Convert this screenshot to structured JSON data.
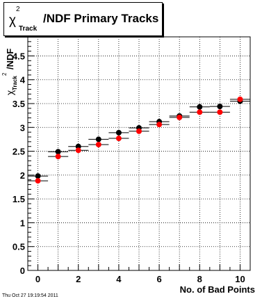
{
  "chart_data": {
    "type": "scatter",
    "title": {
      "chi": "χ",
      "sup": "2",
      "sub": "Track",
      "rest": "/NDF Primary Tracks"
    },
    "ylabel": {
      "chi": "χ",
      "sup": "2",
      "sub": "Track",
      "rest": "/NDF"
    },
    "xlabel": "No. of Bad Points",
    "xlim": [
      -0.5,
      10.5
    ],
    "ylim": [
      0,
      4.9
    ],
    "x_ticks": [
      {
        "value": 0,
        "label": "0"
      },
      {
        "value": 2,
        "label": "2"
      },
      {
        "value": 4,
        "label": "4"
      },
      {
        "value": 6,
        "label": "6"
      },
      {
        "value": 8,
        "label": "8"
      },
      {
        "value": 10,
        "label": "10"
      }
    ],
    "y_ticks": [
      {
        "value": 0,
        "label": "0"
      },
      {
        "value": 0.5,
        "label": "0.5"
      },
      {
        "value": 1,
        "label": "1"
      },
      {
        "value": 1.5,
        "label": "1.5"
      },
      {
        "value": 2,
        "label": "2"
      },
      {
        "value": 2.5,
        "label": "2.5"
      },
      {
        "value": 3,
        "label": "3"
      },
      {
        "value": 3.5,
        "label": "3.5"
      },
      {
        "value": 4,
        "label": "4"
      },
      {
        "value": 4.5,
        "label": "4.5"
      }
    ],
    "grid": true,
    "xerr": 0.5,
    "series": [
      {
        "color": "#000000",
        "x": [
          0,
          1,
          2,
          3,
          4,
          5,
          6,
          7,
          8,
          9,
          10
        ],
        "y": [
          1.98,
          2.49,
          2.6,
          2.75,
          2.89,
          2.99,
          3.12,
          3.24,
          3.43,
          3.44,
          3.55
        ]
      },
      {
        "color": "#ff0000",
        "x": [
          0,
          1,
          2,
          3,
          4,
          5,
          6,
          7,
          8,
          9,
          10
        ],
        "y": [
          1.88,
          2.39,
          2.52,
          2.64,
          2.77,
          2.92,
          3.06,
          3.21,
          3.32,
          3.32,
          3.59
        ]
      }
    ]
  },
  "timestamp": "Thu Oct 27 19:19:54 2011"
}
